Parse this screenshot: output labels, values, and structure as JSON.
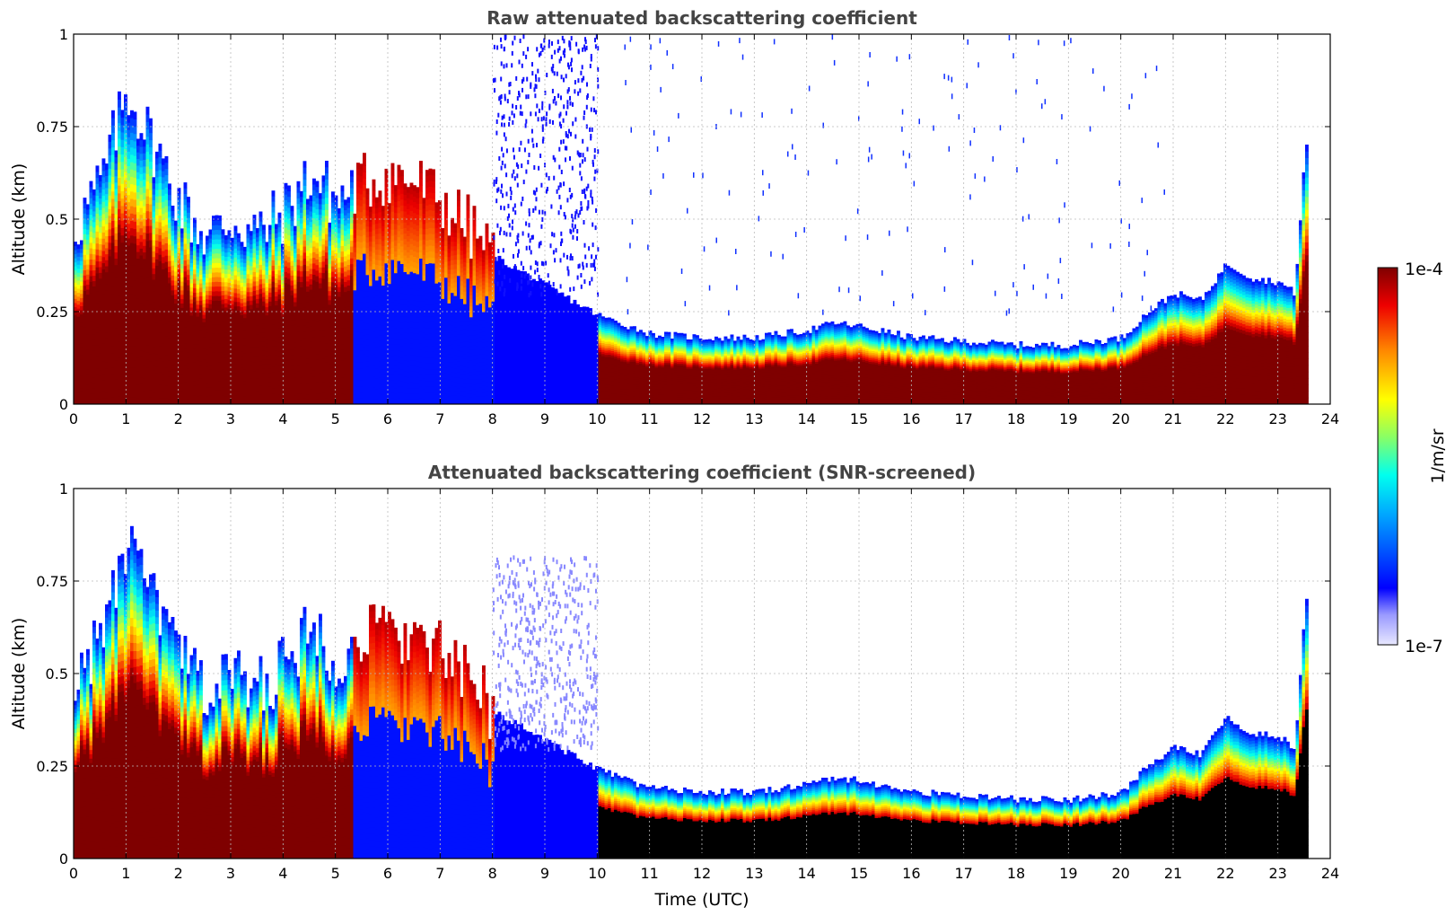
{
  "figure": {
    "colorbar": {
      "label": "1/m/sr",
      "max_label": "1e-4",
      "min_label": "1e-7",
      "scale": "log",
      "range": [
        1e-07,
        0.0001
      ],
      "colormap": "jet (white-blue low end, dark red high end)"
    }
  },
  "chart_data": [
    {
      "type": "heatmap",
      "title": "Raw attenuated backscattering coefficient",
      "xlabel": "",
      "ylabel": "Altitude (km)",
      "xlim": [
        0,
        24
      ],
      "ylim": [
        0,
        1
      ],
      "x_ticks": [
        "0",
        "1",
        "2",
        "3",
        "4",
        "5",
        "6",
        "7",
        "8",
        "9",
        "10",
        "11",
        "12",
        "13",
        "14",
        "15",
        "16",
        "17",
        "18",
        "19",
        "20",
        "21",
        "22",
        "23",
        "24"
      ],
      "y_ticks": [
        "0",
        "0.25",
        "0.5",
        "0.75",
        "1"
      ],
      "grid": true,
      "background_color": "#ffffff",
      "screened": false
    },
    {
      "type": "heatmap",
      "title": "Attenuated backscattering coefficient (SNR-screened)",
      "xlabel": "Time (UTC)",
      "ylabel": "Altitude (km)",
      "xlim": [
        0,
        24
      ],
      "ylim": [
        0,
        1
      ],
      "x_ticks": [
        "0",
        "1",
        "2",
        "3",
        "4",
        "5",
        "6",
        "7",
        "8",
        "9",
        "10",
        "11",
        "12",
        "13",
        "14",
        "15",
        "16",
        "17",
        "18",
        "19",
        "20",
        "21",
        "22",
        "23",
        "24"
      ],
      "y_ticks": [
        "0",
        "0.25",
        "0.5",
        "0.75",
        "1"
      ],
      "grid": true,
      "background_color": "#ffffff",
      "screened": true
    }
  ],
  "profile": {
    "description_units": "top of aerosol layer altitude in km vs time in hours UTC",
    "layer_top_km": [
      [
        0,
        0.48
      ],
      [
        0.5,
        0.6
      ],
      [
        1.0,
        0.85
      ],
      [
        1.5,
        0.7
      ],
      [
        2.0,
        0.55
      ],
      [
        2.5,
        0.45
      ],
      [
        3.0,
        0.5
      ],
      [
        3.5,
        0.46
      ],
      [
        4.0,
        0.52
      ],
      [
        4.5,
        0.62
      ],
      [
        5.0,
        0.55
      ],
      [
        5.5,
        0.6
      ],
      [
        6.0,
        0.62
      ],
      [
        6.5,
        0.6
      ],
      [
        7.0,
        0.55
      ],
      [
        7.5,
        0.48
      ],
      [
        8.0,
        0.4
      ],
      [
        10.0,
        0.24
      ],
      [
        11.0,
        0.19
      ],
      [
        12.0,
        0.18
      ],
      [
        13.0,
        0.18
      ],
      [
        14.0,
        0.2
      ],
      [
        14.5,
        0.22
      ],
      [
        15.0,
        0.21
      ],
      [
        16.0,
        0.18
      ],
      [
        17.0,
        0.17
      ],
      [
        18.0,
        0.16
      ],
      [
        19.0,
        0.16
      ],
      [
        20.0,
        0.18
      ],
      [
        20.5,
        0.25
      ],
      [
        21.0,
        0.3
      ],
      [
        21.5,
        0.28
      ],
      [
        22.0,
        0.38
      ],
      [
        22.5,
        0.34
      ],
      [
        23.0,
        0.33
      ],
      [
        23.3,
        0.3
      ],
      [
        23.5,
        0.7
      ]
    ],
    "data_end_hour": 23.55
  }
}
